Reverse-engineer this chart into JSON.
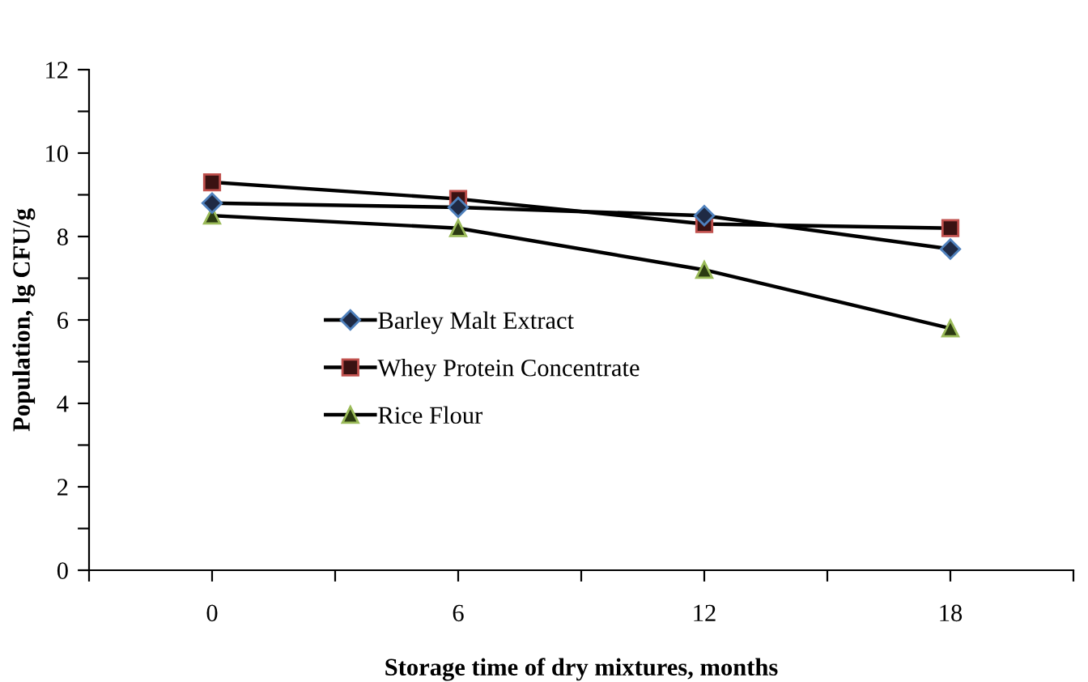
{
  "chart_data": {
    "type": "line",
    "xlabel": "Storage time of dry mixtures, months",
    "ylabel": "Population, lg CFU/g",
    "x": [
      0,
      6,
      12,
      18
    ],
    "series": [
      {
        "name": "Barley Malt Extract",
        "color": "#000000",
        "marker": "diamond",
        "values": [
          8.8,
          8.7,
          8.5,
          7.7
        ]
      },
      {
        "name": "Whey Protein Concentrate",
        "color": "#000000",
        "marker": "square",
        "values": [
          9.3,
          8.9,
          8.3,
          8.2
        ]
      },
      {
        "name": "Rice Flour",
        "color": "#000000",
        "marker": "triangle",
        "values": [
          8.5,
          8.2,
          7.2,
          5.8
        ]
      }
    ],
    "xlim": [
      -3,
      21
    ],
    "xticks": [
      {
        "value": -3,
        "label": null
      },
      0,
      {
        "value": 3,
        "label": null
      },
      6,
      {
        "value": 9,
        "label": null
      },
      12,
      {
        "value": 15,
        "label": null
      },
      18,
      {
        "value": 21,
        "label": null
      }
    ],
    "ylim": [
      0,
      12
    ],
    "yticks": [
      0,
      {
        "value": 1,
        "label": null
      },
      2,
      {
        "value": 3,
        "label": null
      },
      4,
      {
        "value": 5,
        "label": null
      },
      6,
      {
        "value": 7,
        "label": null
      },
      8,
      {
        "value": 9,
        "label": null
      },
      10,
      {
        "value": 11,
        "label": null
      },
      12
    ],
    "grid": false,
    "legend": "center",
    "line_style": "solid"
  }
}
